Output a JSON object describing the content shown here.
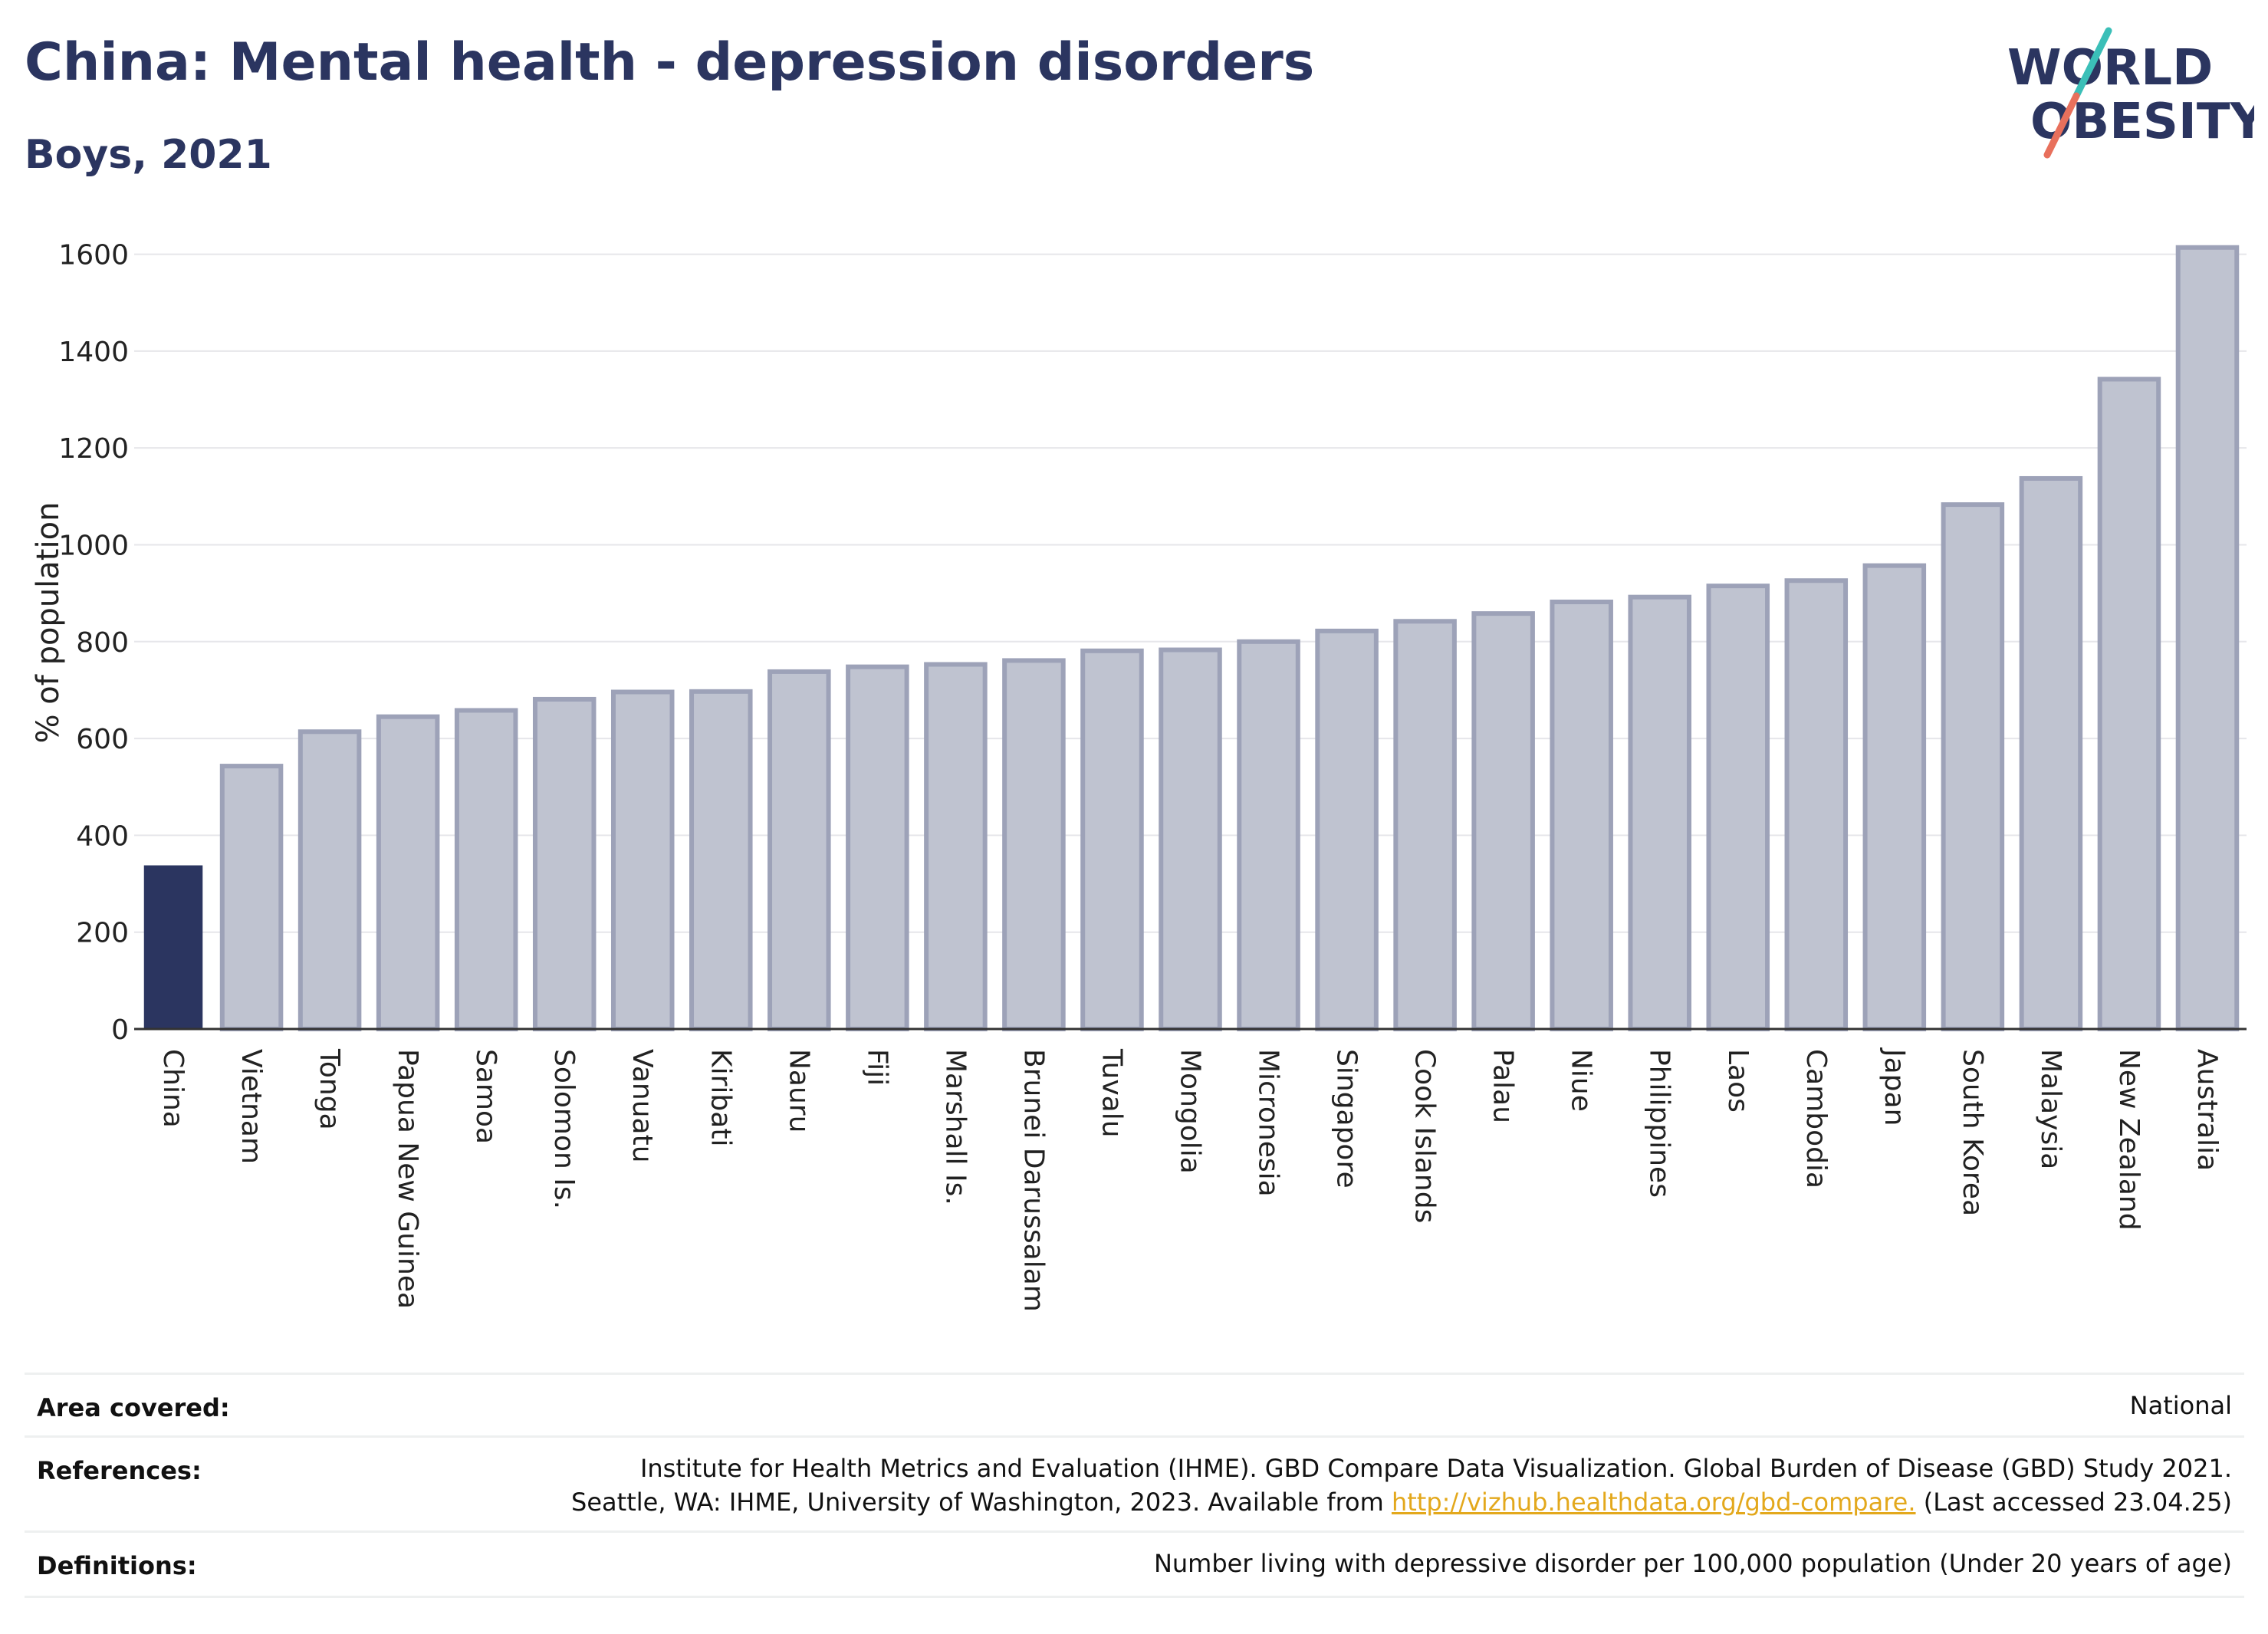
{
  "header": {
    "title": "China: Mental health - depression disorders",
    "subtitle": "Boys, 2021"
  },
  "logo": {
    "line1": "WORLD",
    "line2": "OBESITY"
  },
  "colors": {
    "highlight_bar": "#2b3560",
    "other_bar_fill": "#bfc3d0",
    "other_bar_stroke": "#9da2b8",
    "gridline": "#e6e6ea",
    "logo_text": "#2b3560",
    "logo_slash_teal": "#3bbfb8",
    "logo_slash_coral": "#e8705c",
    "link": "#e3a81c"
  },
  "chart_data": {
    "type": "bar",
    "title": "China: Mental health - depression disorders",
    "subtitle": "Boys, 2021",
    "ylabel": "% of population",
    "xlabel": "",
    "ylim": [
      0,
      1650
    ],
    "yticks": [
      0,
      200,
      400,
      600,
      800,
      1000,
      1200,
      1400,
      1600
    ],
    "grid": true,
    "highlight": "China",
    "categories": [
      "China",
      "Vietnam",
      "Tonga",
      "Papua New Guinea",
      "Samoa",
      "Solomon Is.",
      "Vanuatu",
      "Kiribati",
      "Nauru",
      "Fiji",
      "Marshall Is.",
      "Brunei Darussalam",
      "Tuvalu",
      "Mongolia",
      "Micronesia",
      "Singapore",
      "Cook Islands",
      "Palau",
      "Niue",
      "Philippines",
      "Laos",
      "Cambodia",
      "Japan",
      "South Korea",
      "Malaysia",
      "New Zealand",
      "Australia"
    ],
    "values": [
      338,
      543,
      614,
      645,
      658,
      681,
      696,
      697,
      738,
      748,
      753,
      761,
      781,
      783,
      800,
      822,
      842,
      858,
      882,
      892,
      915,
      926,
      957,
      1083,
      1137,
      1342,
      1614
    ]
  },
  "info": {
    "area_label": "Area covered:",
    "area_value": "National",
    "references_label": "References:",
    "references_line1": "Institute for Health Metrics and Evaluation (IHME). GBD Compare Data Visualization. Global Burden of Disease (GBD) Study 2021.",
    "references_line2_pre": "Seattle, WA: IHME, University of Washington, 2023. Available from",
    "references_link": "http://vizhub.healthdata.org/gbd-compare.",
    "references_line2_post": "(Last accessed 23.04.25)",
    "definitions_label": "Definitions:",
    "definitions_value": "Number living with depressive disorder per 100,000 population (Under 20 years of age)"
  }
}
